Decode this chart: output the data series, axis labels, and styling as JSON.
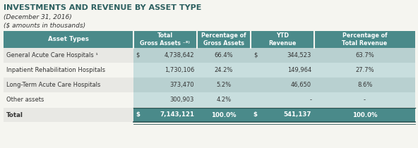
{
  "title": "INVESTMENTS AND REVENUE BY ASSET TYPE",
  "subtitle1": "(December 31, 2016)",
  "subtitle2": "($ amounts in thousands)",
  "header_bg": "#4a8a8a",
  "header_text_color": "#ffffff",
  "total_row_bg": "#4a8a8a",
  "title_color": "#2d6060",
  "body_text_color": "#333333",
  "bg_color": "#f5f5f0",
  "shaded_col_bg": "#c8dede",
  "rows": [
    [
      "General Acute Care Hospitals ¹",
      "$",
      "4,738,642",
      "66.4%",
      "$",
      "344,523",
      "63.7%"
    ],
    [
      "Inpatient Rehabilitation Hospitals",
      "",
      "1,730,106",
      "24.2%",
      "",
      "149,964",
      "27.7%"
    ],
    [
      "Long-Term Acute Care Hospitals",
      "",
      "373,470",
      "5.2%",
      "",
      "46,650",
      "8.6%"
    ],
    [
      "Other assets",
      "",
      "300,903",
      "4.2%",
      "",
      "-",
      "-"
    ]
  ],
  "total_row": [
    "Total",
    "$",
    "7,143,121",
    "100.0%",
    "$",
    "541,137",
    "100.0%"
  ],
  "fig_width": 5.92,
  "fig_height": 2.1,
  "dpi": 100
}
